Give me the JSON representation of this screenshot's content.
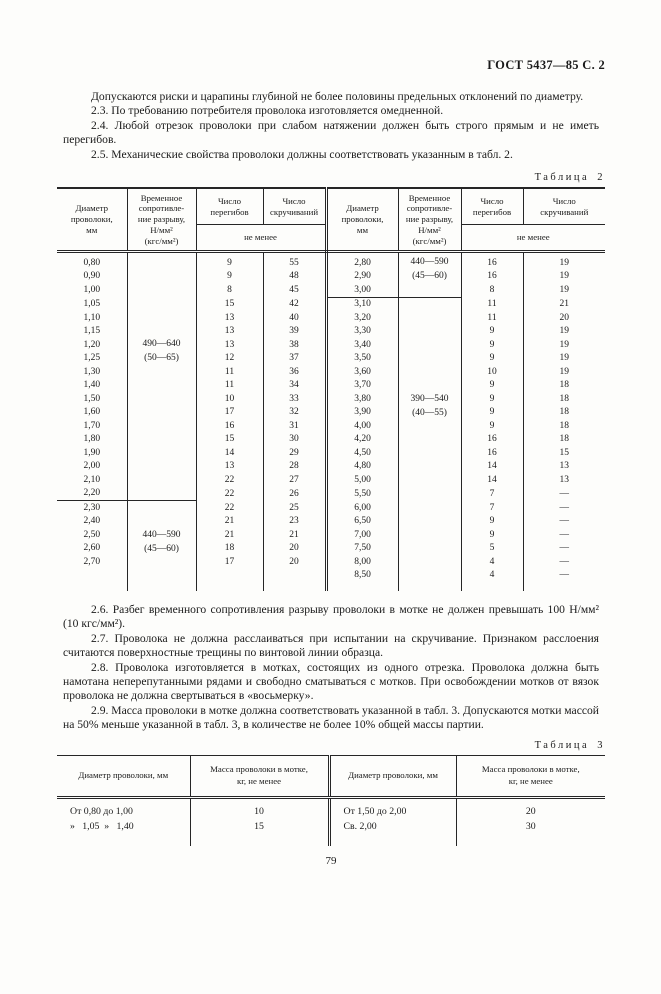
{
  "page": {
    "header_right": "ГОСТ 5437—85 С. 2",
    "page_number": "79"
  },
  "intro_paragraphs": [
    "Допускаются риски и царапины глубиной не более половины предельных отклонений по диаметру.",
    "2.3. По требованию потребителя проволока изготовляется омедненной.",
    "2.4. Любой отрезок проволоки при слабом натяжении должен быть строго прямым и не иметь перегибов.",
    "2.5. Механические свойства проволоки должны соответствовать указанным в табл. 2."
  ],
  "table2": {
    "caption": "Таблица 2",
    "headers": {
      "diameter": "Диаметр\nпроволоки,\nмм",
      "strength": "Временное\nсопротивле-\nние разрыву,\nН/мм²\n(кгс/мм²)",
      "bends": "Число\nперегибов",
      "twists": "Число\nскручиваний",
      "not_less": "не менее"
    },
    "left": {
      "groups": [
        {
          "strength": "490—640\n(50—65)",
          "rows": [
            [
              "0,80",
              "9",
              "55"
            ],
            [
              "0,90",
              "9",
              "48"
            ],
            [
              "1,00",
              "8",
              "45"
            ],
            [
              "1,05",
              "15",
              "42"
            ],
            [
              "1,10",
              "13",
              "40"
            ],
            [
              "1,15",
              "13",
              "39"
            ],
            [
              "1,20",
              "13",
              "38"
            ],
            [
              "1,25",
              "12",
              "37"
            ],
            [
              "1,30",
              "11",
              "36"
            ],
            [
              "1,40",
              "11",
              "34"
            ],
            [
              "1,50",
              "10",
              "33"
            ],
            [
              "1,60",
              "17",
              "32"
            ],
            [
              "1,70",
              "16",
              "31"
            ],
            [
              "1,80",
              "15",
              "30"
            ],
            [
              "1,90",
              "14",
              "29"
            ],
            [
              "2,00",
              "13",
              "28"
            ],
            [
              "2,10",
              "22",
              "27"
            ],
            [
              "2,20",
              "22",
              "26"
            ]
          ]
        },
        {
          "strength": "440—590\n(45—60)",
          "rows": [
            [
              "2,30",
              "22",
              "25"
            ],
            [
              "2,40",
              "21",
              "23"
            ],
            [
              "2,50",
              "21",
              "21"
            ],
            [
              "2,60",
              "18",
              "20"
            ],
            [
              "2,70",
              "17",
              "20"
            ],
            [
              "",
              "",
              ""
            ]
          ]
        }
      ]
    },
    "right": {
      "groups": [
        {
          "strength": "440—590\n(45—60)",
          "rows": [
            [
              "2,80",
              "16",
              "19"
            ],
            [
              "2,90",
              "16",
              "19"
            ],
            [
              "3,00",
              "8",
              "19"
            ]
          ]
        },
        {
          "strength": "390—540\n(40—55)",
          "rows": [
            [
              "3,10",
              "11",
              "21"
            ],
            [
              "3,20",
              "11",
              "20"
            ],
            [
              "3,30",
              "9",
              "19"
            ],
            [
              "3,40",
              "9",
              "19"
            ],
            [
              "3,50",
              "9",
              "19"
            ],
            [
              "3,60",
              "10",
              "19"
            ],
            [
              "3,70",
              "9",
              "18"
            ],
            [
              "3,80",
              "9",
              "18"
            ],
            [
              "3,90",
              "9",
              "18"
            ],
            [
              "4,00",
              "9",
              "18"
            ],
            [
              "4,20",
              "16",
              "18"
            ],
            [
              "4,50",
              "16",
              "15"
            ],
            [
              "4,80",
              "14",
              "13"
            ],
            [
              "5,00",
              "14",
              "13"
            ],
            [
              "5,50",
              "7",
              "—"
            ],
            [
              "6,00",
              "7",
              "—"
            ],
            [
              "6,50",
              "9",
              "—"
            ],
            [
              "7,00",
              "9",
              "—"
            ],
            [
              "7,50",
              "5",
              "—"
            ],
            [
              "8,00",
              "4",
              "—"
            ],
            [
              "8,50",
              "4",
              "—"
            ]
          ]
        }
      ]
    }
  },
  "body_paragraphs": [
    "2.6. Разбег временного сопротивления разрыву проволоки в мотке не должен превышать 100 Н/мм² (10 кгс/мм²).",
    "2.7. Проволока не должна расслаиваться при испытании на скручивание. Признаком расслоения считаются поверхностные трещины по винтовой линии образца.",
    "2.8. Проволока изготовляется в мотках, состоящих из одного отрезка. Проволока должна быть намотана неперепутанными рядами и свободно сматываться с мотков. При освобождении мотков от вязок проволока не должна свертываться в «восьмерку».",
    "2.9. Масса проволоки в мотке должна соответствовать указанной в табл. 3. Допускаются мотки массой на 50% меньше указанной в табл. 3, в количестве не более 10% общей массы партии."
  ],
  "table3": {
    "caption": "Таблица 3",
    "headers": [
      "Диаметр проволоки, мм",
      "Масса проволоки в мотке,\nкг, не менее",
      "Диаметр проволоки, мм",
      "Масса проволоки в мотке,\nкг, не менее"
    ],
    "rows": [
      [
        "От 0,80 до 1,00",
        "10",
        "От 1,50 до 2,00",
        "20"
      ],
      [
        "»   1,05  »   1,40",
        "15",
        "Св. 2,00",
        "30"
      ]
    ]
  }
}
